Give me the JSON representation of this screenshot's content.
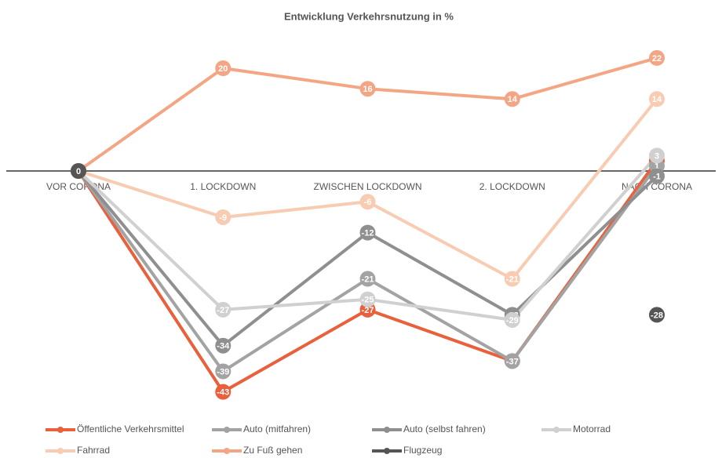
{
  "chart_data": {
    "type": "line",
    "title": "Entwicklung Verkehrsnutzung in %",
    "categories": [
      "VOR CORONA",
      "1. LOCKDOWN",
      "ZWISCHEN LOCKDOWN",
      "2. LOCKDOWN",
      "NACH CORONA"
    ],
    "ylim": [
      -50,
      30
    ],
    "grid": false,
    "legend": "bottom",
    "series": [
      {
        "name": "Öffentliche Verkehrsmittel",
        "color": "#e8603c",
        "values": [
          0,
          -43,
          -27,
          -37,
          2
        ]
      },
      {
        "name": "Auto (mitfahren)",
        "color": "#a3a3a3",
        "values": [
          0,
          -39,
          -21,
          -37,
          1
        ]
      },
      {
        "name": "Auto (selbst fahren)",
        "color": "#8f8f8f",
        "values": [
          0,
          -34,
          -12,
          -28,
          -1
        ]
      },
      {
        "name": "Motorrad",
        "color": "#d0d0d0",
        "values": [
          0,
          -27,
          -25,
          -29,
          3
        ]
      },
      {
        "name": "Fahrrad",
        "color": "#f8ccb2",
        "values": [
          0,
          -9,
          -6,
          -21,
          14
        ]
      },
      {
        "name": "Zu Fuß gehen",
        "color": "#f3a584",
        "values": [
          0,
          20,
          16,
          14,
          22
        ]
      },
      {
        "name": "Flugzeug",
        "color": "#555555",
        "values": [
          0,
          null,
          null,
          null,
          -28
        ]
      }
    ]
  }
}
